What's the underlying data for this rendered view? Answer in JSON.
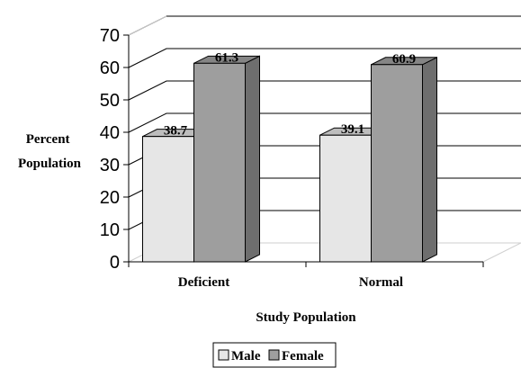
{
  "chart_data": {
    "type": "bar",
    "categories": [
      "Deficient",
      "Normal"
    ],
    "series": [
      {
        "name": "Male",
        "values": [
          38.7,
          39.1
        ],
        "color": "#e6e6e6",
        "side_color": "#cfcfcf",
        "top_color": "#bdbdbd"
      },
      {
        "name": "Female",
        "values": [
          61.3,
          60.9
        ],
        "color": "#9e9e9e",
        "side_color": "#6e6e6e",
        "top_color": "#858585"
      }
    ],
    "data_labels": [
      [
        "38.7",
        "39.1"
      ],
      [
        "61.3",
        "60.9"
      ]
    ],
    "ylim": [
      0,
      70
    ],
    "yticks": [
      0,
      10,
      20,
      30,
      40,
      50,
      60,
      70
    ],
    "ylabel_lines": [
      "Percent",
      "Population"
    ],
    "xlabel": "Study Population",
    "grid": true,
    "legend_position": "bottom",
    "style": "3d-clustered"
  }
}
